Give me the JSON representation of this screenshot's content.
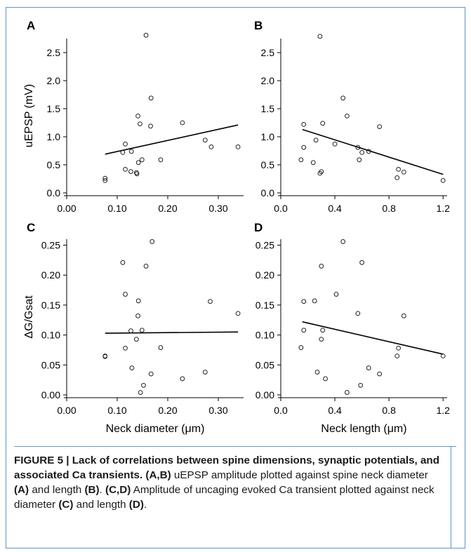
{
  "figure": {
    "caption": {
      "label": "FIGURE 5 | Lack of correlations between spine dimensions, synaptic potentials, and associated Ca transients.",
      "part1_ref": "(A,B)",
      "part1_text_a": " uEPSP amplitude plotted against spine neck diameter ",
      "part1_ref_a": "(A)",
      "part1_text_b": " and length ",
      "part1_ref_b": "(B)",
      "part1_end": ". ",
      "part2_ref": "(C,D)",
      "part2_text_a": " Amplitude of uncaging evoked Ca transient plotted against neck diameter ",
      "part2_ref_c": "(C)",
      "part2_text_b": " and length ",
      "part2_ref_d": "(D)",
      "part2_end": "."
    }
  },
  "chart_data": [
    {
      "panel": "A",
      "type": "scatter",
      "ylabel": "uEPSP (mV)",
      "xlabel": "",
      "xlim": [
        0,
        0.35
      ],
      "ylim": [
        0,
        2.75
      ],
      "xticks": [
        "0.00",
        "0.10",
        "0.20",
        "0.30"
      ],
      "xtick_values": [
        0,
        0.1,
        0.2,
        0.3
      ],
      "yticks": [
        "0.0",
        "0.5",
        "1.0",
        "1.5",
        "2.0",
        "2.5"
      ],
      "ytick_values": [
        0,
        0.5,
        1.0,
        1.5,
        2.0,
        2.5
      ],
      "points": [
        [
          0.076,
          0.26
        ],
        [
          0.076,
          0.22
        ],
        [
          0.111,
          0.72
        ],
        [
          0.116,
          0.87
        ],
        [
          0.116,
          0.42
        ],
        [
          0.127,
          0.38
        ],
        [
          0.128,
          0.74
        ],
        [
          0.138,
          0.36
        ],
        [
          0.139,
          0.34
        ],
        [
          0.141,
          1.37
        ],
        [
          0.142,
          0.54
        ],
        [
          0.145,
          1.23
        ],
        [
          0.149,
          0.59
        ],
        [
          0.157,
          2.81
        ],
        [
          0.166,
          1.19
        ],
        [
          0.167,
          1.69
        ],
        [
          0.186,
          0.59
        ],
        [
          0.229,
          1.25
        ],
        [
          0.274,
          0.94
        ],
        [
          0.286,
          0.82
        ],
        [
          0.339,
          0.82
        ]
      ],
      "fit_line": [
        [
          0.076,
          0.69
        ],
        [
          0.339,
          1.21
        ]
      ]
    },
    {
      "panel": "B",
      "type": "scatter",
      "ylabel": "",
      "xlabel": "",
      "xlim": [
        0,
        1.23
      ],
      "ylim": [
        0,
        2.75
      ],
      "xticks": [
        "0.0",
        "0.4",
        "0.8",
        "1.2"
      ],
      "xtick_values": [
        0,
        0.4,
        0.8,
        1.2
      ],
      "yticks": [
        "0.0",
        "0.5",
        "1.0",
        "1.5",
        "2.0",
        "2.5"
      ],
      "ytick_values": [
        0,
        0.5,
        1.0,
        1.5,
        2.0,
        2.5
      ],
      "points": [
        [
          0.15,
          0.59
        ],
        [
          0.17,
          1.22
        ],
        [
          0.17,
          0.81
        ],
        [
          0.24,
          0.54
        ],
        [
          0.26,
          0.94
        ],
        [
          0.29,
          2.79
        ],
        [
          0.29,
          0.35
        ],
        [
          0.3,
          0.38
        ],
        [
          0.31,
          1.24
        ],
        [
          0.4,
          0.87
        ],
        [
          0.46,
          1.69
        ],
        [
          0.49,
          1.37
        ],
        [
          0.57,
          0.81
        ],
        [
          0.58,
          0.59
        ],
        [
          0.6,
          0.72
        ],
        [
          0.65,
          0.74
        ],
        [
          0.73,
          1.18
        ],
        [
          0.86,
          0.27
        ],
        [
          0.87,
          0.42
        ],
        [
          0.91,
          0.37
        ],
        [
          1.2,
          0.22
        ]
      ],
      "fit_line": [
        [
          0.16,
          1.13
        ],
        [
          1.2,
          0.33
        ]
      ]
    },
    {
      "panel": "C",
      "type": "scatter",
      "ylabel": "ΔG/Gsat",
      "xlabel": "Neck diameter (μm)",
      "xlim": [
        0,
        0.35
      ],
      "ylim": [
        0,
        0.26
      ],
      "xticks": [
        "0.00",
        "0.10",
        "0.20",
        "0.30"
      ],
      "xtick_values": [
        0,
        0.1,
        0.2,
        0.3
      ],
      "yticks": [
        "0.00",
        "0.05",
        "0.10",
        "0.15",
        "0.20",
        "0.25"
      ],
      "ytick_values": [
        0,
        0.05,
        0.1,
        0.15,
        0.2,
        0.25
      ],
      "points": [
        [
          0.076,
          0.065
        ],
        [
          0.076,
          0.064
        ],
        [
          0.111,
          0.221
        ],
        [
          0.116,
          0.078
        ],
        [
          0.116,
          0.168
        ],
        [
          0.127,
          0.107
        ],
        [
          0.129,
          0.045
        ],
        [
          0.138,
          0.093
        ],
        [
          0.141,
          0.132
        ],
        [
          0.142,
          0.157
        ],
        [
          0.146,
          0.004
        ],
        [
          0.149,
          0.108
        ],
        [
          0.152,
          0.016
        ],
        [
          0.157,
          0.215
        ],
        [
          0.167,
          0.035
        ],
        [
          0.169,
          0.256
        ],
        [
          0.186,
          0.079
        ],
        [
          0.229,
          0.027
        ],
        [
          0.274,
          0.038
        ],
        [
          0.284,
          0.156
        ],
        [
          0.339,
          0.136
        ]
      ],
      "fit_line": [
        [
          0.076,
          0.103
        ],
        [
          0.339,
          0.105
        ]
      ]
    },
    {
      "panel": "D",
      "type": "scatter",
      "ylabel": "",
      "xlabel": "Neck length (μm)",
      "xlim": [
        0,
        1.23
      ],
      "ylim": [
        0,
        0.26
      ],
      "xticks": [
        "0.0",
        "0.4",
        "0.8",
        "1.2"
      ],
      "xtick_values": [
        0,
        0.4,
        0.8,
        1.2
      ],
      "yticks": [
        "0.00",
        "0.05",
        "0.10",
        "0.15",
        "0.20",
        "0.25"
      ],
      "ytick_values": [
        0,
        0.05,
        0.1,
        0.15,
        0.2,
        0.25
      ],
      "points": [
        [
          0.15,
          0.079
        ],
        [
          0.17,
          0.108
        ],
        [
          0.17,
          0.156
        ],
        [
          0.25,
          0.157
        ],
        [
          0.27,
          0.038
        ],
        [
          0.3,
          0.215
        ],
        [
          0.3,
          0.093
        ],
        [
          0.31,
          0.108
        ],
        [
          0.33,
          0.027
        ],
        [
          0.41,
          0.168
        ],
        [
          0.46,
          0.256
        ],
        [
          0.49,
          0.004
        ],
        [
          0.57,
          0.136
        ],
        [
          0.59,
          0.016
        ],
        [
          0.6,
          0.221
        ],
        [
          0.65,
          0.045
        ],
        [
          0.73,
          0.035
        ],
        [
          0.86,
          0.065
        ],
        [
          0.87,
          0.078
        ],
        [
          0.91,
          0.132
        ],
        [
          1.2,
          0.065
        ]
      ],
      "fit_line": [
        [
          0.16,
          0.122
        ],
        [
          1.2,
          0.068
        ]
      ]
    }
  ]
}
